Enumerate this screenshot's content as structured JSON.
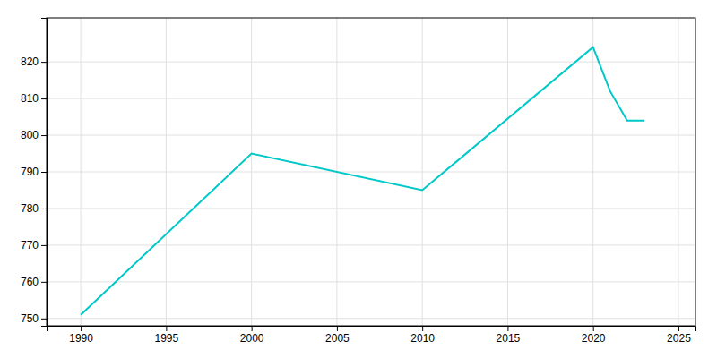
{
  "chart_data": {
    "type": "line",
    "x": [
      1990,
      2000,
      2010,
      2020,
      2021,
      2022,
      2023
    ],
    "values": [
      751,
      795,
      785,
      824,
      812,
      804,
      804
    ],
    "color": "#00C8C8",
    "xlim": [
      1988,
      2026
    ],
    "ylim": [
      748,
      832
    ],
    "xticks": [
      1990,
      1995,
      2000,
      2005,
      2010,
      2015,
      2020,
      2025
    ],
    "yticks": [
      750,
      760,
      770,
      780,
      790,
      800,
      810,
      820
    ],
    "grid": true
  }
}
